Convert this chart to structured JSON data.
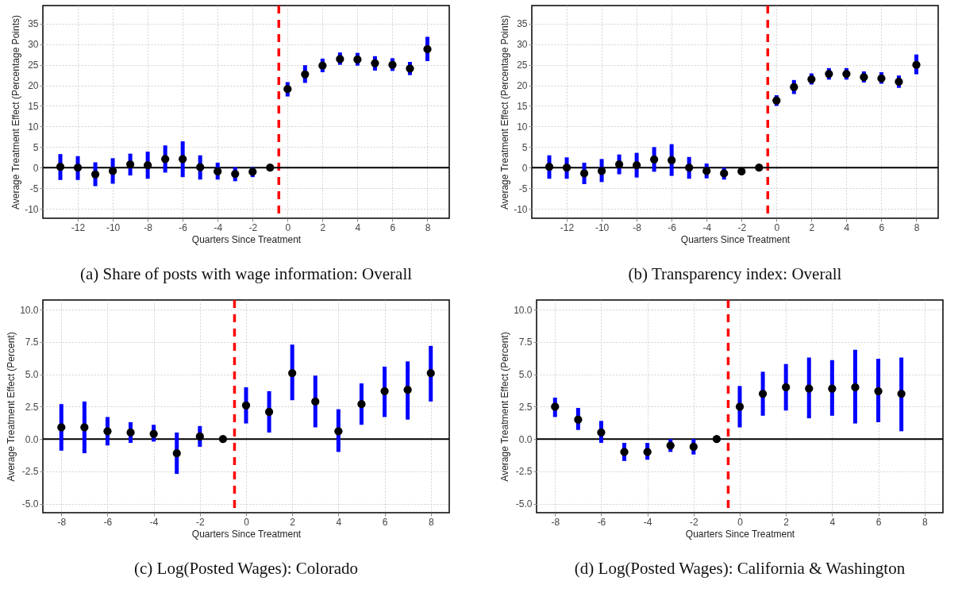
{
  "chart_data": [
    {
      "type": "scatter",
      "title": "(a) Share of posts with wage information: Overall",
      "xlabel": "Quarters Since Treatment",
      "ylabel": "Average Treatment Effect (Percentage Points)",
      "marker": "circle",
      "grid": true,
      "xlim": [
        -14,
        9.25
      ],
      "ylim": [
        -12.3,
        39.4
      ],
      "xticks": [
        -12,
        -10,
        -8,
        -6,
        -4,
        -2,
        0,
        2,
        4,
        6,
        8
      ],
      "yticks": [
        -10,
        -5,
        0,
        5,
        10,
        15,
        20,
        25,
        30,
        35
      ],
      "series": [
        {
          "color": "#000000",
          "x": [
            -13,
            -12,
            -11,
            -10,
            -9,
            -8,
            -7,
            -6,
            -5,
            -4,
            -3,
            -2,
            -1,
            0,
            1,
            2,
            3,
            4,
            5,
            6,
            7,
            8
          ],
          "values": [
            0.2,
            0,
            -1.6,
            -0.8,
            0.8,
            0.6,
            2.1,
            2.1,
            0.1,
            -0.9,
            -1.5,
            -1,
            0,
            19.1,
            22.7,
            24.8,
            26.4,
            26.3,
            25.4,
            25,
            24.1,
            28.8
          ],
          "errors": [
            [
              -3,
              3.3
            ],
            [
              -3,
              2.8
            ],
            [
              -4.5,
              1.3
            ],
            [
              -3.9,
              2.3
            ],
            [
              -1.9,
              3.4
            ],
            [
              -2.7,
              3.9
            ],
            [
              -1.2,
              5.4
            ],
            [
              -2.3,
              6.4
            ],
            [
              -2.9,
              3
            ],
            [
              -2.9,
              1.2
            ],
            [
              -3.3,
              0.1
            ],
            [
              -2.3,
              0.1
            ],
            null,
            [
              17.3,
              20.8
            ],
            [
              20.6,
              24.9
            ],
            [
              23.2,
              26.5
            ],
            [
              25,
              28
            ],
            [
              24.8,
              27.9
            ],
            [
              23.6,
              27.1
            ],
            [
              23.5,
              26.6
            ],
            [
              22.5,
              25.7
            ],
            [
              25.9,
              31.8
            ]
          ]
        }
      ],
      "ref_lines": [
        {
          "axis": "x",
          "value": -0.5,
          "color": "#ff0000",
          "line_style": "dashed"
        },
        {
          "axis": "y",
          "value": 0,
          "color": "#000000",
          "line_style": "solid"
        }
      ]
    },
    {
      "type": "scatter",
      "title": "(b) Transparency index: Overall",
      "xlabel": "Quarters Since Treatment",
      "ylabel": "Average Treatment Effect (Percentage Points)",
      "marker": "circle",
      "grid": true,
      "xlim": [
        -14,
        9.25
      ],
      "ylim": [
        -12.3,
        39.4
      ],
      "xticks": [
        -12,
        -10,
        -8,
        -6,
        -4,
        -2,
        0,
        2,
        4,
        6,
        8
      ],
      "yticks": [
        -10,
        -5,
        0,
        5,
        10,
        15,
        20,
        25,
        30,
        35
      ],
      "series": [
        {
          "color": "#000000",
          "x": [
            -13,
            -12,
            -11,
            -10,
            -9,
            -8,
            -7,
            -6,
            -5,
            -4,
            -3,
            -2,
            -1,
            0,
            1,
            2,
            3,
            4,
            5,
            6,
            7,
            8
          ],
          "values": [
            0.2,
            0,
            -1.4,
            -0.8,
            0.8,
            0.6,
            2,
            1.8,
            0,
            -0.8,
            -1.4,
            -0.9,
            0,
            16.3,
            19.6,
            21.5,
            22.8,
            22.8,
            22,
            21.7,
            20.9,
            25
          ],
          "errors": [
            [
              -2.7,
              3
            ],
            [
              -2.7,
              2.5
            ],
            [
              -4,
              1.2
            ],
            [
              -3.5,
              2.1
            ],
            [
              -1.6,
              3.2
            ],
            [
              -2.4,
              3.6
            ],
            [
              -1,
              5
            ],
            [
              -2,
              5.7
            ],
            [
              -2.7,
              2.6
            ],
            [
              -2.6,
              1
            ],
            [
              -2.9,
              0
            ],
            null,
            null,
            [
              15,
              17.6
            ],
            [
              17.9,
              21.3
            ],
            [
              20.2,
              22.9
            ],
            [
              21.4,
              24.2
            ],
            [
              21.4,
              24.2
            ],
            [
              20.7,
              23.4
            ],
            [
              20.4,
              23.2
            ],
            [
              19.4,
              22.4
            ],
            [
              22.7,
              27.5
            ]
          ]
        }
      ],
      "ref_lines": [
        {
          "axis": "x",
          "value": -0.5,
          "color": "#ff0000",
          "line_style": "dashed"
        },
        {
          "axis": "y",
          "value": 0,
          "color": "#000000",
          "line_style": "solid"
        }
      ]
    },
    {
      "type": "scatter",
      "title": "(c) Log(Posted Wages): Colorado",
      "xlabel": "Quarters Since Treatment",
      "ylabel": "Average Treatment Effect (Percent)",
      "marker": "circle",
      "grid": true,
      "xlim": [
        -8.8,
        8.8
      ],
      "ylim": [
        -5.7,
        10.75
      ],
      "xticks": [
        -8,
        -6,
        -4,
        -2,
        0,
        2,
        4,
        6,
        8
      ],
      "yticks": [
        {
          "value": -5,
          "label": "-5.0"
        },
        -2.5,
        {
          "value": 0,
          "label": "0.0"
        },
        2.5,
        {
          "value": 5,
          "label": "5.0"
        },
        7.5,
        {
          "value": 10,
          "label": "10.0"
        }
      ],
      "series": [
        {
          "color": "#000000",
          "x": [
            -8,
            -7,
            -6,
            -5,
            -4,
            -3,
            -2,
            -1,
            0,
            1,
            2,
            3,
            4,
            5,
            6,
            7,
            8
          ],
          "values": [
            0.9,
            0.9,
            0.6,
            0.5,
            0.4,
            -1.1,
            0.2,
            0,
            2.6,
            2.1,
            5.1,
            2.9,
            0.6,
            2.7,
            3.7,
            3.8,
            5.1
          ],
          "errors": [
            [
              -0.9,
              2.7
            ],
            [
              -1.1,
              2.9
            ],
            [
              -0.5,
              1.7
            ],
            [
              -0.3,
              1.3
            ],
            [
              -0.2,
              1.1
            ],
            [
              -2.7,
              0.5
            ],
            [
              -0.6,
              1
            ],
            null,
            [
              1.2,
              4
            ],
            [
              0.5,
              3.7
            ],
            [
              3,
              7.3
            ],
            [
              0.9,
              4.9
            ],
            [
              -1,
              2.3
            ],
            [
              1.1,
              4.3
            ],
            [
              1.7,
              5.6
            ],
            [
              1.5,
              6
            ],
            [
              2.9,
              7.2
            ]
          ]
        }
      ],
      "ref_lines": [
        {
          "axis": "x",
          "value": -0.5,
          "color": "#ff0000",
          "line_style": "dashed"
        },
        {
          "axis": "y",
          "value": 0,
          "color": "#000000",
          "line_style": "solid"
        }
      ]
    },
    {
      "type": "scatter",
      "title": "(d) Log(Posted Wages): California & Washington",
      "xlabel": "Quarters Since Treatment",
      "ylabel": "Average Treatment Effect (Percent)",
      "marker": "circle",
      "grid": true,
      "xlim": [
        -8.8,
        8.8
      ],
      "ylim": [
        -5.7,
        10.75
      ],
      "xticks": [
        -8,
        -6,
        -4,
        -2,
        0,
        2,
        4,
        6,
        8
      ],
      "yticks": [
        {
          "value": -5,
          "label": "-5.0"
        },
        -2.5,
        {
          "value": 0,
          "label": "0.0"
        },
        2.5,
        {
          "value": 5,
          "label": "5.0"
        },
        7.5,
        {
          "value": 10,
          "label": "10.0"
        }
      ],
      "series": [
        {
          "color": "#000000",
          "x": [
            -8,
            -7,
            -6,
            -5,
            -4,
            -3,
            -2,
            -1,
            0,
            1,
            2,
            3,
            4,
            5,
            6,
            7
          ],
          "values": [
            2.5,
            1.5,
            0.5,
            -1,
            -1,
            -0.5,
            -0.6,
            0,
            2.5,
            3.5,
            4,
            3.9,
            3.9,
            4,
            3.7,
            3.5
          ],
          "errors": [
            [
              1.7,
              3.2
            ],
            [
              0.7,
              2.4
            ],
            [
              -0.3,
              1.4
            ],
            [
              -1.7,
              -0.3
            ],
            [
              -1.6,
              -0.3
            ],
            [
              -1,
              0
            ],
            [
              -1.2,
              0
            ],
            null,
            [
              0.9,
              4.1
            ],
            [
              1.8,
              5.2
            ],
            [
              2.2,
              5.8
            ],
            [
              1.6,
              6.3
            ],
            [
              1.8,
              6.1
            ],
            [
              1.2,
              6.9
            ],
            [
              1.3,
              6.2
            ],
            [
              0.6,
              6.3
            ]
          ]
        }
      ],
      "ref_lines": [
        {
          "axis": "x",
          "value": -0.5,
          "color": "#ff0000",
          "line_style": "dashed"
        },
        {
          "axis": "y",
          "value": 0,
          "color": "#000000",
          "line_style": "solid"
        }
      ]
    }
  ]
}
